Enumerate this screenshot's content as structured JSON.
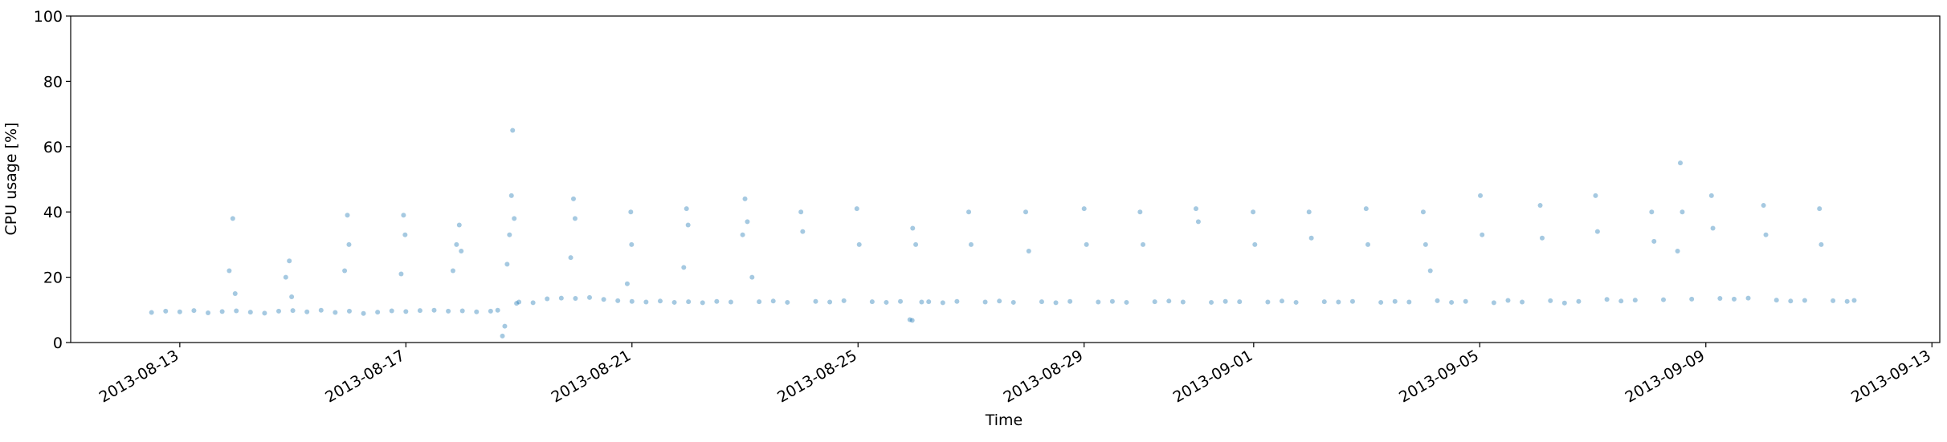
{
  "chart_data": {
    "type": "scatter",
    "x_label": "Time",
    "y_label": "CPU usage [%]",
    "color": "#1f77b4",
    "alpha": 0.4,
    "xlim": [
      "2013-08-11 01:40",
      "2013-09-13 03:20"
    ],
    "xticks": [
      "2013-08-13",
      "2013-08-17",
      "2013-08-21",
      "2013-08-25",
      "2013-08-29",
      "2013-09-01",
      "2013-09-05",
      "2013-09-09",
      "2013-09-13"
    ],
    "ylim": [
      0,
      100
    ],
    "yticks": [
      0,
      20,
      40,
      60,
      80,
      100
    ],
    "x": [
      "2013-08-12 12:00",
      "2013-08-12 18:00",
      "2013-08-13 00:00",
      "2013-08-13 06:00",
      "2013-08-13 12:00",
      "2013-08-13 18:00",
      "2013-08-13 21:00",
      "2013-08-13 22:30",
      "2013-08-13 23:30",
      "2013-08-14 00:00",
      "2013-08-14 06:00",
      "2013-08-14 12:00",
      "2013-08-14 18:00",
      "2013-08-14 21:00",
      "2013-08-14 22:30",
      "2013-08-14 23:30",
      "2013-08-15 00:00",
      "2013-08-15 06:00",
      "2013-08-15 12:00",
      "2013-08-15 18:00",
      "2013-08-15 22:00",
      "2013-08-15 23:10",
      "2013-08-15 23:50",
      "2013-08-16 00:00",
      "2013-08-16 06:00",
      "2013-08-16 12:00",
      "2013-08-16 18:00",
      "2013-08-16 22:00",
      "2013-08-16 23:00",
      "2013-08-16 23:40",
      "2013-08-17 00:00",
      "2013-08-17 06:00",
      "2013-08-17 12:00",
      "2013-08-17 18:00",
      "2013-08-17 20:00",
      "2013-08-17 21:30",
      "2013-08-17 22:40",
      "2013-08-17 23:30",
      "2013-08-18 00:00",
      "2013-08-18 06:00",
      "2013-08-18 12:00",
      "2013-08-18 15:00",
      "2013-08-18 17:00",
      "2013-08-18 18:00",
      "2013-08-18 19:00",
      "2013-08-18 20:00",
      "2013-08-18 20:50",
      "2013-08-18 21:20",
      "2013-08-18 22:00",
      "2013-08-18 23:00",
      "2013-08-19 00:00",
      "2013-08-19 06:00",
      "2013-08-19 12:00",
      "2013-08-19 18:00",
      "2013-08-19 22:00",
      "2013-08-19 23:10",
      "2013-08-19 23:50",
      "2013-08-20 00:00",
      "2013-08-20 06:00",
      "2013-08-20 12:00",
      "2013-08-20 18:00",
      "2013-08-20 22:00",
      "2013-08-20 23:30",
      "2013-08-20 23:50",
      "2013-08-21 00:00",
      "2013-08-21 06:00",
      "2013-08-21 12:00",
      "2013-08-21 18:00",
      "2013-08-21 22:00",
      "2013-08-21 23:10",
      "2013-08-21 23:50",
      "2013-08-22 00:00",
      "2013-08-22 06:00",
      "2013-08-22 12:00",
      "2013-08-22 18:00",
      "2013-08-22 23:00",
      "2013-08-23 00:00",
      "2013-08-23 01:00",
      "2013-08-23 03:00",
      "2013-08-23 06:00",
      "2013-08-23 12:00",
      "2013-08-23 18:00",
      "2013-08-23 23:45",
      "2013-08-24 00:30",
      "2013-08-24 06:00",
      "2013-08-24 12:00",
      "2013-08-24 18:00",
      "2013-08-24 23:30",
      "2013-08-25 00:30",
      "2013-08-25 06:00",
      "2013-08-25 12:00",
      "2013-08-25 18:00",
      "2013-08-25 22:00",
      "2013-08-25 23:00",
      "2013-08-25 23:12",
      "2013-08-26 00:30",
      "2013-08-26 03:00",
      "2013-08-26 06:00",
      "2013-08-26 12:00",
      "2013-08-26 18:00",
      "2013-08-26 23:00",
      "2013-08-27 00:00",
      "2013-08-27 06:00",
      "2013-08-27 12:00",
      "2013-08-27 18:00",
      "2013-08-27 23:12",
      "2013-08-28 00:30",
      "2013-08-28 06:00",
      "2013-08-28 12:00",
      "2013-08-28 18:00",
      "2013-08-29 00:00",
      "2013-08-29 01:00",
      "2013-08-29 06:00",
      "2013-08-29 12:00",
      "2013-08-29 18:00",
      "2013-08-29 23:45",
      "2013-08-30 01:00",
      "2013-08-30 06:00",
      "2013-08-30 12:00",
      "2013-08-30 18:00",
      "2013-08-30 23:30",
      "2013-08-31 00:30",
      "2013-08-31 06:00",
      "2013-08-31 12:00",
      "2013-08-31 18:00",
      "2013-08-31 23:45",
      "2013-09-01 00:30",
      "2013-09-01 06:00",
      "2013-09-01 12:00",
      "2013-09-01 18:00",
      "2013-09-01 23:30",
      "2013-09-02 00:30",
      "2013-09-02 06:00",
      "2013-09-02 12:00",
      "2013-09-02 18:00",
      "2013-09-02 23:45",
      "2013-09-03 00:30",
      "2013-09-03 06:00",
      "2013-09-03 12:00",
      "2013-09-03 18:00",
      "2013-09-04 00:00",
      "2013-09-04 01:00",
      "2013-09-04 03:00",
      "2013-09-04 06:00",
      "2013-09-04 12:00",
      "2013-09-04 18:00",
      "2013-09-05 00:15",
      "2013-09-05 01:00",
      "2013-09-05 06:00",
      "2013-09-05 12:00",
      "2013-09-05 18:00",
      "2013-09-06 01:40",
      "2013-09-06 02:30",
      "2013-09-06 06:00",
      "2013-09-06 12:00",
      "2013-09-06 18:00",
      "2013-09-07 01:10",
      "2013-09-07 02:00",
      "2013-09-07 06:00",
      "2013-09-07 12:00",
      "2013-09-07 18:00",
      "2013-09-08 01:00",
      "2013-09-08 02:00",
      "2013-09-08 06:00",
      "2013-09-08 12:00",
      "2013-09-08 13:10",
      "2013-09-08 14:00",
      "2013-09-08 18:00",
      "2013-09-09 02:24",
      "2013-09-09 03:00",
      "2013-09-09 06:00",
      "2013-09-09 12:00",
      "2013-09-09 18:00",
      "2013-09-10 00:30",
      "2013-09-10 01:30",
      "2013-09-10 06:00",
      "2013-09-10 12:00",
      "2013-09-10 18:00",
      "2013-09-11 00:15",
      "2013-09-11 01:00",
      "2013-09-11 06:00",
      "2013-09-11 12:00",
      "2013-09-11 15:00"
    ],
    "values": [
      9.2,
      9.6,
      9.4,
      9.8,
      9.1,
      9.5,
      22,
      38,
      15,
      9.7,
      9.3,
      9.0,
      9.6,
      20,
      25,
      14,
      9.8,
      9.4,
      9.9,
      9.2,
      22,
      39,
      30,
      9.6,
      8.9,
      9.3,
      9.7,
      21,
      39,
      33,
      9.5,
      9.8,
      9.9,
      9.6,
      22,
      30,
      36,
      28,
      9.7,
      9.4,
      9.6,
      9.9,
      2,
      5,
      24,
      33,
      45,
      65,
      38,
      12,
      12.4,
      12.2,
      13.4,
      13.6,
      26,
      44,
      38,
      13.5,
      13.8,
      13.2,
      12.8,
      18,
      40,
      30,
      12.6,
      12.4,
      12.7,
      12.3,
      23,
      41,
      36,
      12.5,
      12.2,
      12.6,
      12.4,
      33,
      44,
      37,
      20,
      12.5,
      12.7,
      12.3,
      40,
      34,
      12.6,
      12.4,
      12.8,
      41,
      30,
      12.5,
      12.3,
      12.6,
      7,
      6.8,
      35,
      30,
      12.4,
      12.5,
      12.2,
      12.6,
      40,
      30,
      12.4,
      12.7,
      12.3,
      40,
      28,
      12.5,
      12.2,
      12.6,
      41,
      30,
      12.4,
      12.6,
      12.3,
      40,
      30,
      12.5,
      12.7,
      12.4,
      41,
      37,
      12.3,
      12.6,
      12.5,
      40,
      30,
      12.4,
      12.7,
      12.3,
      40,
      32,
      12.5,
      12.4,
      12.6,
      41,
      30,
      12.3,
      12.6,
      12.4,
      40,
      30,
      22,
      12.8,
      12.3,
      12.6,
      45,
      33,
      12.2,
      12.9,
      12.4,
      42,
      32,
      12.8,
      12.1,
      12.6,
      45,
      34,
      13.2,
      12.7,
      13.0,
      40,
      31,
      13.1,
      28,
      55,
      40,
      13.3,
      45,
      35,
      13.5,
      13.3,
      13.6,
      42,
      33,
      13.0,
      12.7,
      12.9,
      41,
      30,
      12.8,
      12.6,
      12.9
    ]
  }
}
